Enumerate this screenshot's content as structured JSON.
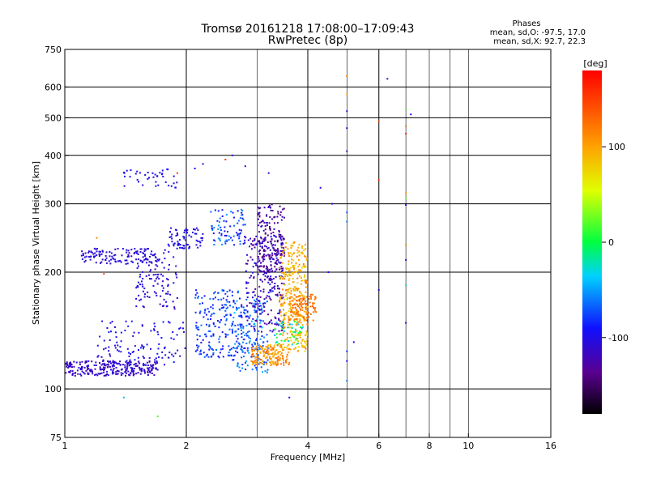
{
  "chart_data": {
    "type": "scatter",
    "title": "Tromsø 20161218 17:08:00–17:09:43",
    "subtitle": "RwPretec (8p)",
    "xlabel": "Frequency [MHz]",
    "ylabel": "Stationary phase Virtual Height [km]",
    "x_scale": "log",
    "y_scale": "log",
    "xlim": [
      1,
      16
    ],
    "ylim": [
      75,
      750
    ],
    "x_ticks": [
      1,
      2,
      4,
      6,
      8,
      10,
      16
    ],
    "x_tick_labels": [
      "1",
      "2",
      "4",
      "6",
      "8",
      "10",
      "16"
    ],
    "x_grid_major": [
      2,
      4,
      6
    ],
    "x_grid_minor": [
      3,
      5,
      7,
      8,
      9,
      10
    ],
    "y_ticks": [
      75,
      100,
      200,
      300,
      400,
      500,
      600,
      750
    ],
    "y_tick_labels": [
      "75",
      "100",
      "200",
      "300",
      "400",
      "500",
      "600",
      "750"
    ],
    "y_grid": [
      100,
      200,
      300,
      400,
      500,
      600
    ],
    "grid": true,
    "stats": {
      "header": "Phases",
      "line_o": "mean, sd,O: -97.5, 17.0",
      "line_x": "mean, sd,X:  92.7, 22.3"
    },
    "colorbar": {
      "label": "[deg]",
      "range": [
        -180,
        180
      ],
      "ticks": [
        100,
        0,
        -100
      ],
      "tick_labels": [
        "100",
        "0",
        "-100"
      ],
      "colormap": "rainbow"
    },
    "clusters": [
      {
        "x": [
          1.0,
          1.7
        ],
        "y": [
          108,
          118
        ],
        "phase": [
          -125,
          -100
        ],
        "n": 260
      },
      {
        "x": [
          1.2,
          2.0
        ],
        "y": [
          115,
          150
        ],
        "phase": [
          -115,
          -85
        ],
        "n": 120
      },
      {
        "x": [
          1.1,
          1.7
        ],
        "y": [
          210,
          230
        ],
        "phase": [
          -115,
          -95
        ],
        "n": 120
      },
      {
        "x": [
          1.5,
          1.9
        ],
        "y": [
          160,
          230
        ],
        "phase": [
          -120,
          -95
        ],
        "n": 110
      },
      {
        "x": [
          1.8,
          2.2
        ],
        "y": [
          230,
          260
        ],
        "phase": [
          -110,
          -90
        ],
        "n": 70
      },
      {
        "x": [
          1.4,
          1.9
        ],
        "y": [
          330,
          370
        ],
        "phase": [
          -110,
          -90
        ],
        "n": 40
      },
      {
        "x": [
          2.1,
          2.8
        ],
        "y": [
          120,
          180
        ],
        "phase": [
          -100,
          -60
        ],
        "n": 200
      },
      {
        "x": [
          2.3,
          2.8
        ],
        "y": [
          235,
          290
        ],
        "phase": [
          -100,
          -50
        ],
        "n": 80
      },
      {
        "x": [
          2.6,
          3.2
        ],
        "y": [
          110,
          170
        ],
        "phase": [
          -90,
          -40
        ],
        "n": 160
      },
      {
        "x": [
          2.8,
          3.5
        ],
        "y": [
          140,
          250
        ],
        "phase": [
          -140,
          -95
        ],
        "n": 260
      },
      {
        "x": [
          3.0,
          3.5
        ],
        "y": [
          200,
          300
        ],
        "phase": [
          -150,
          -110
        ],
        "n": 160
      },
      {
        "x": [
          2.9,
          3.6
        ],
        "y": [
          115,
          130
        ],
        "phase": [
          90,
          130
        ],
        "n": 150
      },
      {
        "x": [
          3.4,
          4.0
        ],
        "y": [
          125,
          240
        ],
        "phase": [
          70,
          120
        ],
        "n": 340
      },
      {
        "x": [
          3.6,
          4.2
        ],
        "y": [
          150,
          175
        ],
        "phase": [
          110,
          140
        ],
        "n": 90
      },
      {
        "x": [
          3.3,
          3.9
        ],
        "y": [
          130,
          150
        ],
        "phase": [
          -60,
          30
        ],
        "n": 50
      }
    ],
    "points": [
      {
        "x": 5.0,
        "y": 640,
        "phase": 120
      },
      {
        "x": 5.0,
        "y": 575,
        "phase": 100
      },
      {
        "x": 5.0,
        "y": 520,
        "phase": -115
      },
      {
        "x": 5.0,
        "y": 470,
        "phase": -110
      },
      {
        "x": 5.0,
        "y": 410,
        "phase": -120
      },
      {
        "x": 5.0,
        "y": 285,
        "phase": -70
      },
      {
        "x": 5.0,
        "y": 270,
        "phase": -60
      },
      {
        "x": 5.0,
        "y": 125,
        "phase": -80
      },
      {
        "x": 5.0,
        "y": 118,
        "phase": -95
      },
      {
        "x": 5.0,
        "y": 105,
        "phase": -60
      },
      {
        "x": 5.2,
        "y": 132,
        "phase": -90
      },
      {
        "x": 6.0,
        "y": 490,
        "phase": 140
      },
      {
        "x": 6.0,
        "y": 345,
        "phase": 160
      },
      {
        "x": 6.0,
        "y": 180,
        "phase": -110
      },
      {
        "x": 6.3,
        "y": 630,
        "phase": -120
      },
      {
        "x": 7.0,
        "y": 525,
        "phase": 20
      },
      {
        "x": 7.0,
        "y": 475,
        "phase": 120
      },
      {
        "x": 7.0,
        "y": 455,
        "phase": 160
      },
      {
        "x": 7.0,
        "y": 320,
        "phase": 100
      },
      {
        "x": 7.0,
        "y": 310,
        "phase": 30
      },
      {
        "x": 7.0,
        "y": 298,
        "phase": -100
      },
      {
        "x": 7.0,
        "y": 235,
        "phase": 110
      },
      {
        "x": 7.0,
        "y": 215,
        "phase": -110
      },
      {
        "x": 7.0,
        "y": 185,
        "phase": -20
      },
      {
        "x": 7.0,
        "y": 148,
        "phase": -110
      },
      {
        "x": 7.2,
        "y": 510,
        "phase": -100
      },
      {
        "x": 4.3,
        "y": 330,
        "phase": -100
      },
      {
        "x": 4.6,
        "y": 300,
        "phase": -110
      },
      {
        "x": 3.6,
        "y": 95,
        "phase": -90
      },
      {
        "x": 1.4,
        "y": 95,
        "phase": -40
      },
      {
        "x": 1.7,
        "y": 85,
        "phase": 20
      },
      {
        "x": 1.2,
        "y": 245,
        "phase": 110
      },
      {
        "x": 1.25,
        "y": 198,
        "phase": 140
      },
      {
        "x": 2.1,
        "y": 370,
        "phase": -90
      },
      {
        "x": 2.6,
        "y": 400,
        "phase": -100
      },
      {
        "x": 2.5,
        "y": 390,
        "phase": 150
      },
      {
        "x": 2.2,
        "y": 380,
        "phase": -110
      },
      {
        "x": 1.9,
        "y": 360,
        "phase": 150
      },
      {
        "x": 2.8,
        "y": 375,
        "phase": -110
      },
      {
        "x": 3.2,
        "y": 360,
        "phase": -105
      },
      {
        "x": 4.5,
        "y": 200,
        "phase": -90
      }
    ]
  }
}
